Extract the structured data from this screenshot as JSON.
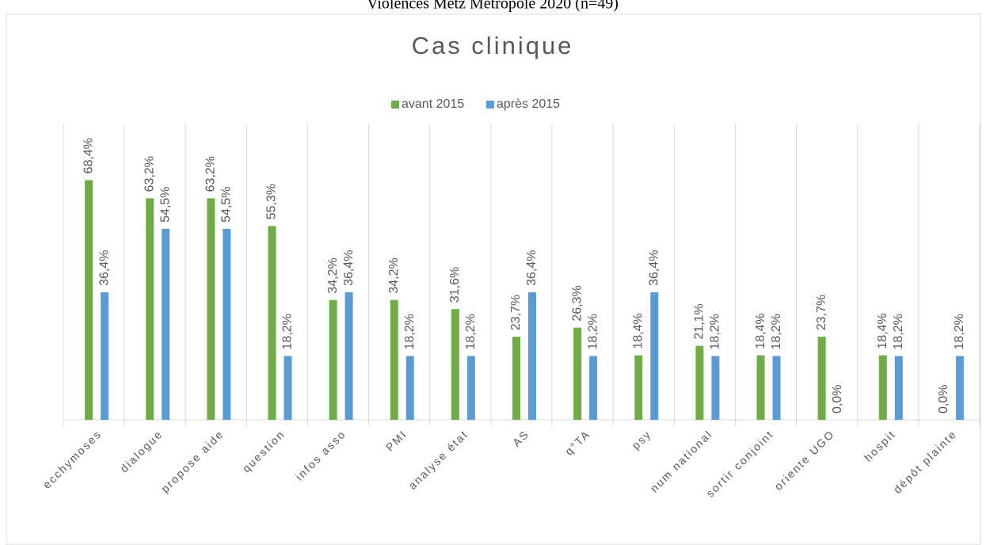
{
  "header": "Violences Metz Métropole 2020 (n=49)",
  "chart_data": {
    "type": "bar",
    "title": "Cas clinique",
    "categories": [
      "ecchymoses",
      "dialogue",
      "propose aide",
      "question",
      "infos asso",
      "PMI",
      "analyse état",
      "AS",
      "q°TA",
      "psy",
      "num national",
      "sortir conjoint",
      "oriente UGO",
      "hospit",
      "dépôt plainte"
    ],
    "series": [
      {
        "name": "avant 2015",
        "color": "#70ad47",
        "values": [
          68.4,
          63.2,
          63.2,
          55.3,
          34.2,
          34.2,
          31.6,
          23.7,
          26.3,
          18.4,
          21.1,
          18.4,
          23.7,
          18.4,
          0.0
        ],
        "value_labels": [
          "68,4%",
          "63,2%",
          "63,2%",
          "55,3%",
          "34,2%",
          "34,2%",
          "31,6%",
          "23,7%",
          "26,3%",
          "18,4%",
          "21,1%",
          "18,4%",
          "23,7%",
          "18,4%",
          "0,0%"
        ]
      },
      {
        "name": "après 2015",
        "color": "#5b9bd5",
        "values": [
          36.4,
          54.5,
          54.5,
          18.2,
          36.4,
          18.2,
          18.2,
          36.4,
          18.2,
          36.4,
          18.2,
          18.2,
          0.0,
          18.2,
          18.2
        ],
        "value_labels": [
          "36,4%",
          "54,5%",
          "54,5%",
          "18,2%",
          "36,4%",
          "18,2%",
          "18,2%",
          "36,4%",
          "18,2%",
          "36,4%",
          "18,2%",
          "18,2%",
          "0,0%",
          "18,2%",
          "18,2%"
        ]
      }
    ],
    "ylim": [
      0,
      80
    ],
    "legend": "top"
  }
}
